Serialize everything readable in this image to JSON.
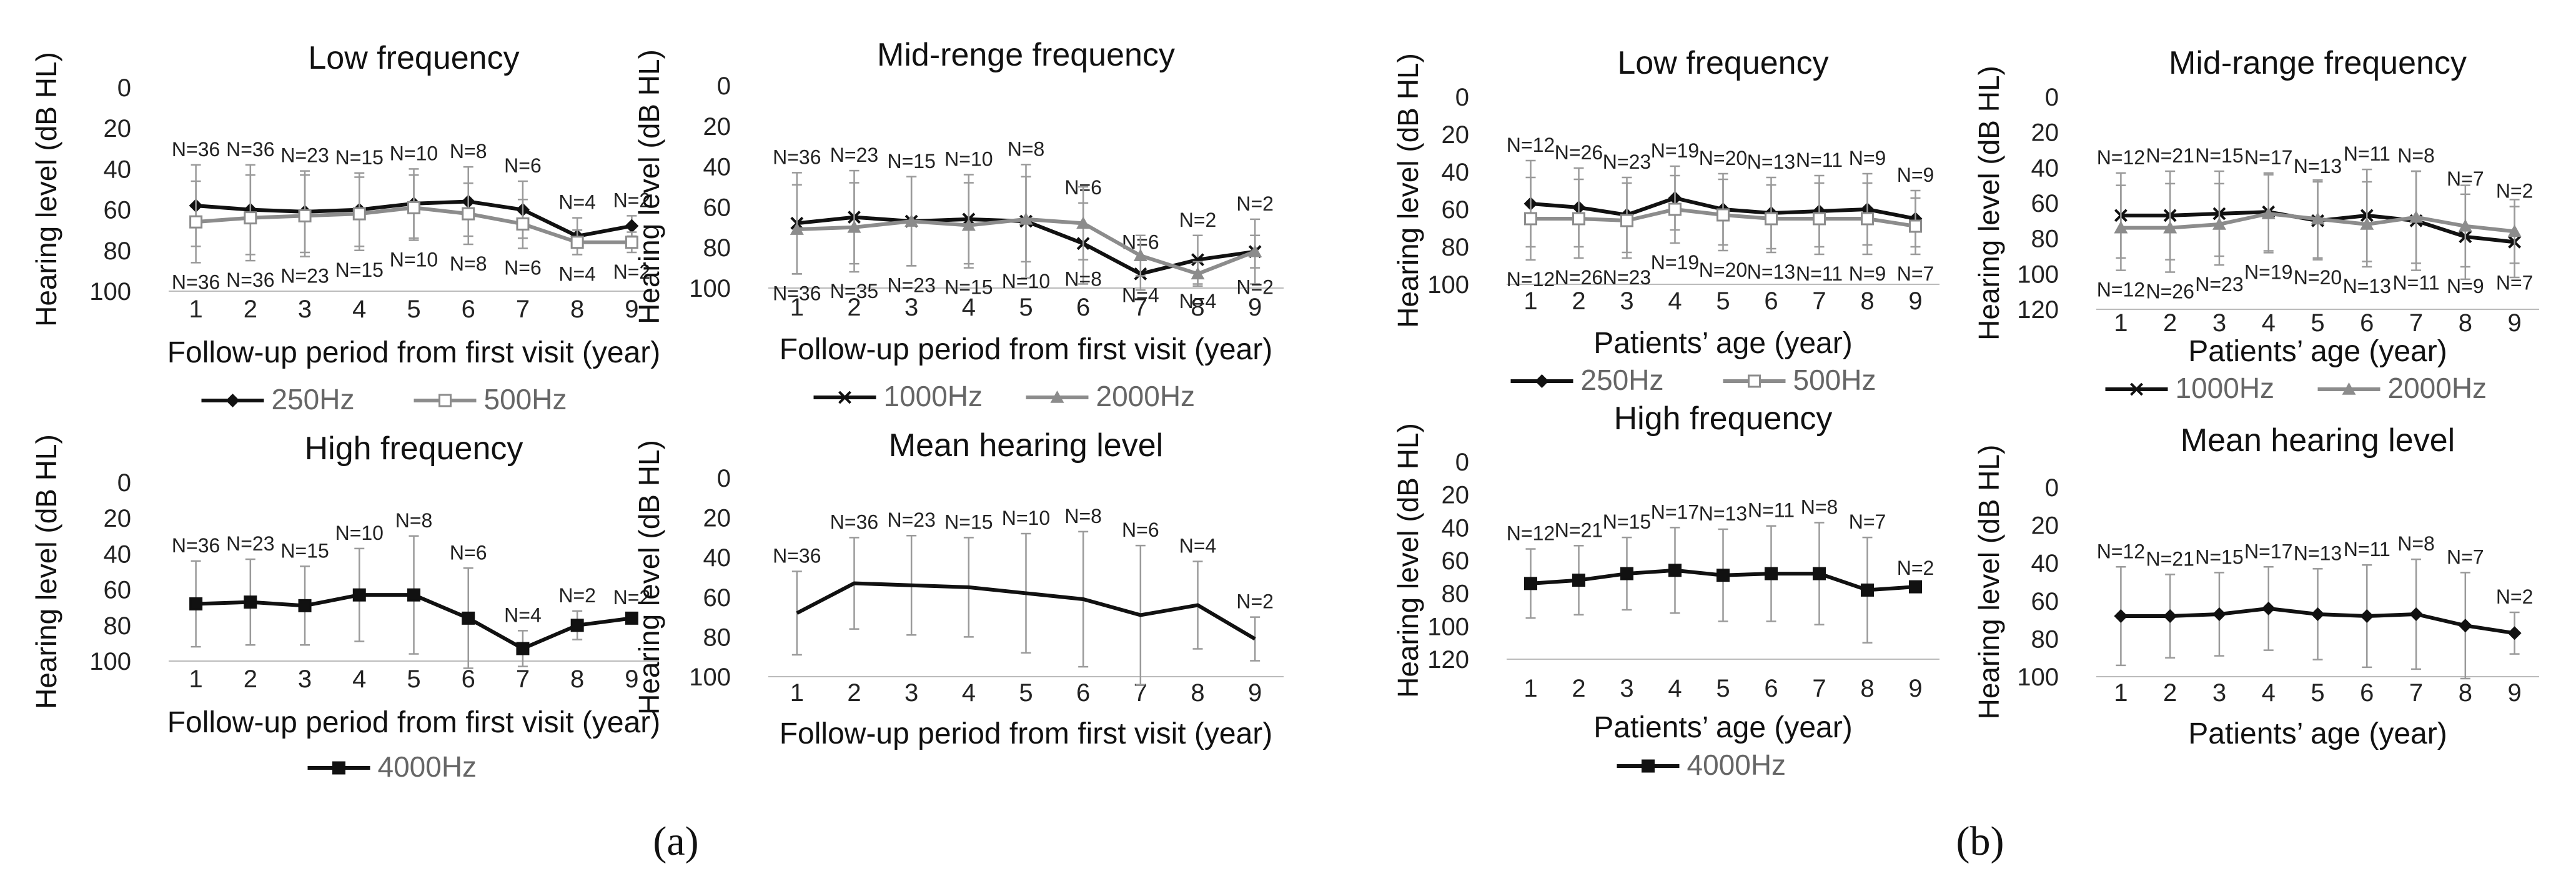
{
  "figure": {
    "panel_labels": [
      "(a)",
      "(b)"
    ]
  },
  "chart_data": [
    {
      "type": "line",
      "panel": "a",
      "title": "Low frequency",
      "xlabel": "Follow-up period from first visit (year)",
      "ylabel": "Hearing level (dB HL)",
      "categories": [
        "1",
        "2",
        "3",
        "4",
        "5",
        "6",
        "7",
        "8",
        "9"
      ],
      "ylim": [
        0,
        100
      ],
      "yticks": [
        "0",
        "20",
        "40",
        "60",
        "80",
        "100"
      ],
      "y_inverted": true,
      "legend_position": "bottom",
      "series": [
        {
          "name": "250Hz",
          "color": "#111111",
          "marker": "diamond",
          "values": [
            58,
            60,
            61,
            60,
            57,
            56,
            60,
            73,
            68
          ],
          "err": [
            20,
            22,
            20,
            18,
            17,
            17,
            14,
            9,
            5
          ],
          "n_labels": [
            "N=36",
            "N=36",
            "N=23",
            "N=15",
            "N=10",
            "N=8",
            "N=6",
            "N=4",
            "N=2"
          ],
          "n_label_side": "above"
        },
        {
          "name": "500Hz",
          "color": "#8c8c8c",
          "marker": "square",
          "values": [
            66,
            64,
            63,
            62,
            59,
            62,
            67,
            76,
            76
          ],
          "err": [
            20,
            21,
            20,
            18,
            16,
            15,
            12,
            6,
            5
          ],
          "n_labels": [
            "N=36",
            "N=36",
            "N=23",
            "N=15",
            "N=10",
            "N=8",
            "N=6",
            "N=4",
            "N=2"
          ],
          "n_label_side": "below"
        }
      ]
    },
    {
      "type": "line",
      "panel": "a",
      "title": "Mid-renge frequency",
      "xlabel": "Follow-up period from first visit (year)",
      "ylabel": "Hearing level (dB HL)",
      "categories": [
        "1",
        "2",
        "3",
        "4",
        "5",
        "6",
        "7",
        "8",
        "9"
      ],
      "ylim": [
        0,
        100
      ],
      "yticks": [
        "0",
        "20",
        "40",
        "60",
        "80",
        "100"
      ],
      "y_inverted": true,
      "legend_position": "bottom",
      "series": [
        {
          "name": "1000Hz",
          "color": "#111111",
          "marker": "x",
          "values": [
            68,
            65,
            67,
            66,
            67,
            78,
            93,
            86,
            82
          ],
          "err": [
            25,
            23,
            22,
            22,
            28,
            20,
            8,
            12,
            16
          ],
          "n_labels": [
            "N=36",
            "N=23",
            "N=15",
            "N=10",
            "N=8",
            "N=6",
            "N=6",
            "N=2",
            "N=2"
          ],
          "n_label_side": "above"
        },
        {
          "name": "2000Hz",
          "color": "#8c8c8c",
          "marker": "triangle",
          "values": [
            71,
            70,
            67,
            69,
            66,
            68,
            84,
            93,
            82
          ],
          "err": [
            22,
            22,
            22,
            21,
            21,
            18,
            10,
            6,
            8
          ],
          "n_labels": [
            "N=36",
            "N=35",
            "N=23",
            "N=15",
            "N=10",
            "N=8",
            "N=4",
            "N=4",
            "N=2"
          ],
          "n_label_side": "below"
        }
      ]
    },
    {
      "type": "line",
      "panel": "a",
      "title": "High frequency",
      "xlabel": "Follow-up period from first visit (year)",
      "ylabel": "Hearing level (dB HL)",
      "categories": [
        "1",
        "2",
        "3",
        "4",
        "5",
        "6",
        "7",
        "8",
        "9"
      ],
      "ylim": [
        0,
        100
      ],
      "yticks": [
        "0",
        "20",
        "40",
        "60",
        "80",
        "100"
      ],
      "y_inverted": true,
      "legend_position": "bottom",
      "series": [
        {
          "name": "4000Hz",
          "color": "#111111",
          "marker": "square",
          "values": [
            68,
            67,
            69,
            63,
            63,
            76,
            93,
            80,
            76
          ],
          "err": [
            24,
            24,
            22,
            26,
            33,
            28,
            10,
            8,
            3
          ],
          "n_labels": [
            "N=36",
            "N=23",
            "N=15",
            "N=10",
            "N=8",
            "N=6",
            "N=4",
            "N=2",
            "N=2"
          ],
          "n_label_side": "above"
        }
      ]
    },
    {
      "type": "line",
      "panel": "a",
      "title": "Mean hearing level",
      "xlabel": "Follow-up period from first visit (year)",
      "ylabel": "Hearing level (dB HL)",
      "categories": [
        "1",
        "2",
        "3",
        "4",
        "5",
        "6",
        "7",
        "8",
        "9"
      ],
      "ylim": [
        0,
        100
      ],
      "yticks": [
        "0",
        "20",
        "40",
        "60",
        "80",
        "100"
      ],
      "y_inverted": true,
      "legend_position": "none",
      "series": [
        {
          "name": "Mean",
          "color": "#111111",
          "marker": "none",
          "values": [
            68,
            53,
            54,
            55,
            58,
            61,
            69,
            64,
            81
          ],
          "err": [
            21,
            23,
            25,
            25,
            30,
            34,
            35,
            22,
            11
          ],
          "n_labels": [
            "N=36",
            "N=36",
            "N=23",
            "N=15",
            "N=10",
            "N=8",
            "N=6",
            "N=4",
            "N=2"
          ],
          "n_label_side": "above"
        }
      ]
    },
    {
      "type": "line",
      "panel": "b",
      "title": "Low frequency",
      "xlabel": "Patients’ age (year)",
      "ylabel": "Hearing level (dB HL)",
      "categories": [
        "1",
        "2",
        "3",
        "4",
        "5",
        "6",
        "7",
        "8",
        "9"
      ],
      "ylim": [
        0,
        100
      ],
      "yticks": [
        "0",
        "20",
        "40",
        "60",
        "80",
        "100"
      ],
      "y_inverted": true,
      "legend_position": "bottom",
      "series": [
        {
          "name": "250Hz",
          "color": "#111111",
          "marker": "diamond",
          "values": [
            57,
            59,
            63,
            54,
            60,
            62,
            61,
            60,
            65
          ],
          "err": [
            23,
            21,
            20,
            17,
            19,
            19,
            19,
            19,
            15
          ],
          "n_labels": [
            "N=12",
            "N=26",
            "N=23",
            "N=19",
            "N=20",
            "N=13",
            "N=11",
            "N=9",
            "N=9"
          ],
          "n_label_side": "above"
        },
        {
          "name": "500Hz",
          "color": "#8c8c8c",
          "marker": "square",
          "values": [
            65,
            65,
            66,
            60,
            63,
            65,
            65,
            65,
            69
          ],
          "err": [
            22,
            21,
            20,
            18,
            19,
            18,
            19,
            19,
            15
          ],
          "n_labels": [
            "N=12",
            "N=26",
            "N=23",
            "N=19",
            "N=20",
            "N=13",
            "N=11",
            "N=9",
            "N=7"
          ],
          "n_label_side": "below"
        }
      ]
    },
    {
      "type": "line",
      "panel": "b",
      "title": "Mid-range frequency",
      "xlabel": "Patients’ age (year)",
      "ylabel": "Hearing level (dB HL)",
      "categories": [
        "1",
        "2",
        "3",
        "4",
        "5",
        "6",
        "7",
        "8",
        "9"
      ],
      "ylim": [
        0,
        120
      ],
      "yticks": [
        "0",
        "20",
        "40",
        "60",
        "80",
        "100",
        "120"
      ],
      "y_inverted": true,
      "legend_position": "bottom",
      "series": [
        {
          "name": "1000Hz",
          "color": "#111111",
          "marker": "x",
          "values": [
            67,
            67,
            66,
            65,
            70,
            67,
            70,
            79,
            82
          ],
          "err": [
            24,
            25,
            24,
            22,
            22,
            26,
            28,
            24,
            20
          ],
          "n_labels": [
            "N=12",
            "N=21",
            "N=15",
            "N=17",
            "N=13",
            "N=11",
            "N=8",
            "N=7",
            "N=2"
          ],
          "n_label_side": "above"
        },
        {
          "name": "2000Hz",
          "color": "#8c8c8c",
          "marker": "triangle",
          "values": [
            74,
            74,
            72,
            66,
            69,
            72,
            68,
            73,
            76
          ],
          "err": [
            24,
            25,
            23,
            22,
            22,
            24,
            26,
            23,
            18
          ],
          "n_labels": [
            "N=12",
            "N=26",
            "N=23",
            "N=19",
            "N=20",
            "N=13",
            "N=11",
            "N=9",
            "N=7"
          ],
          "n_label_side": "below"
        }
      ]
    },
    {
      "type": "line",
      "panel": "b",
      "title": "High frequency",
      "xlabel": "Patients’ age (year)",
      "ylabel": "Hearing level (dB HL)",
      "categories": [
        "1",
        "2",
        "3",
        "4",
        "5",
        "6",
        "7",
        "8",
        "9"
      ],
      "ylim": [
        0,
        120
      ],
      "yticks": [
        "0",
        "20",
        "40",
        "60",
        "80",
        "100",
        "120"
      ],
      "y_inverted": true,
      "legend_position": "bottom",
      "series": [
        {
          "name": "4000Hz",
          "color": "#111111",
          "marker": "square",
          "values": [
            74,
            72,
            68,
            66,
            69,
            68,
            68,
            78,
            76
          ],
          "err": [
            21,
            21,
            22,
            26,
            28,
            29,
            31,
            32,
            2
          ],
          "n_labels": [
            "N=12",
            "N=21",
            "N=15",
            "N=17",
            "N=13",
            "N=11",
            "N=8",
            "N=7",
            "N=2"
          ],
          "n_label_side": "above"
        }
      ]
    },
    {
      "type": "line",
      "panel": "b",
      "title": "Mean hearing level",
      "xlabel": "Patients’ age (year)",
      "ylabel": "Hearing level (dB HL)",
      "categories": [
        "1",
        "2",
        "3",
        "4",
        "5",
        "6",
        "7",
        "8",
        "9"
      ],
      "ylim": [
        0,
        100
      ],
      "yticks": [
        "0",
        "20",
        "40",
        "60",
        "80",
        "100"
      ],
      "y_inverted": true,
      "legend_position": "none",
      "series": [
        {
          "name": "Mean",
          "color": "#111111",
          "marker": "diamond",
          "values": [
            68,
            68,
            67,
            64,
            67,
            68,
            67,
            73,
            77
          ],
          "err": [
            26,
            22,
            22,
            22,
            24,
            27,
            29,
            28,
            11
          ],
          "n_labels": [
            "N=12",
            "N=21",
            "N=15",
            "N=17",
            "N=13",
            "N=11",
            "N=8",
            "N=7",
            "N=2"
          ],
          "n_label_side": "above"
        }
      ]
    }
  ]
}
